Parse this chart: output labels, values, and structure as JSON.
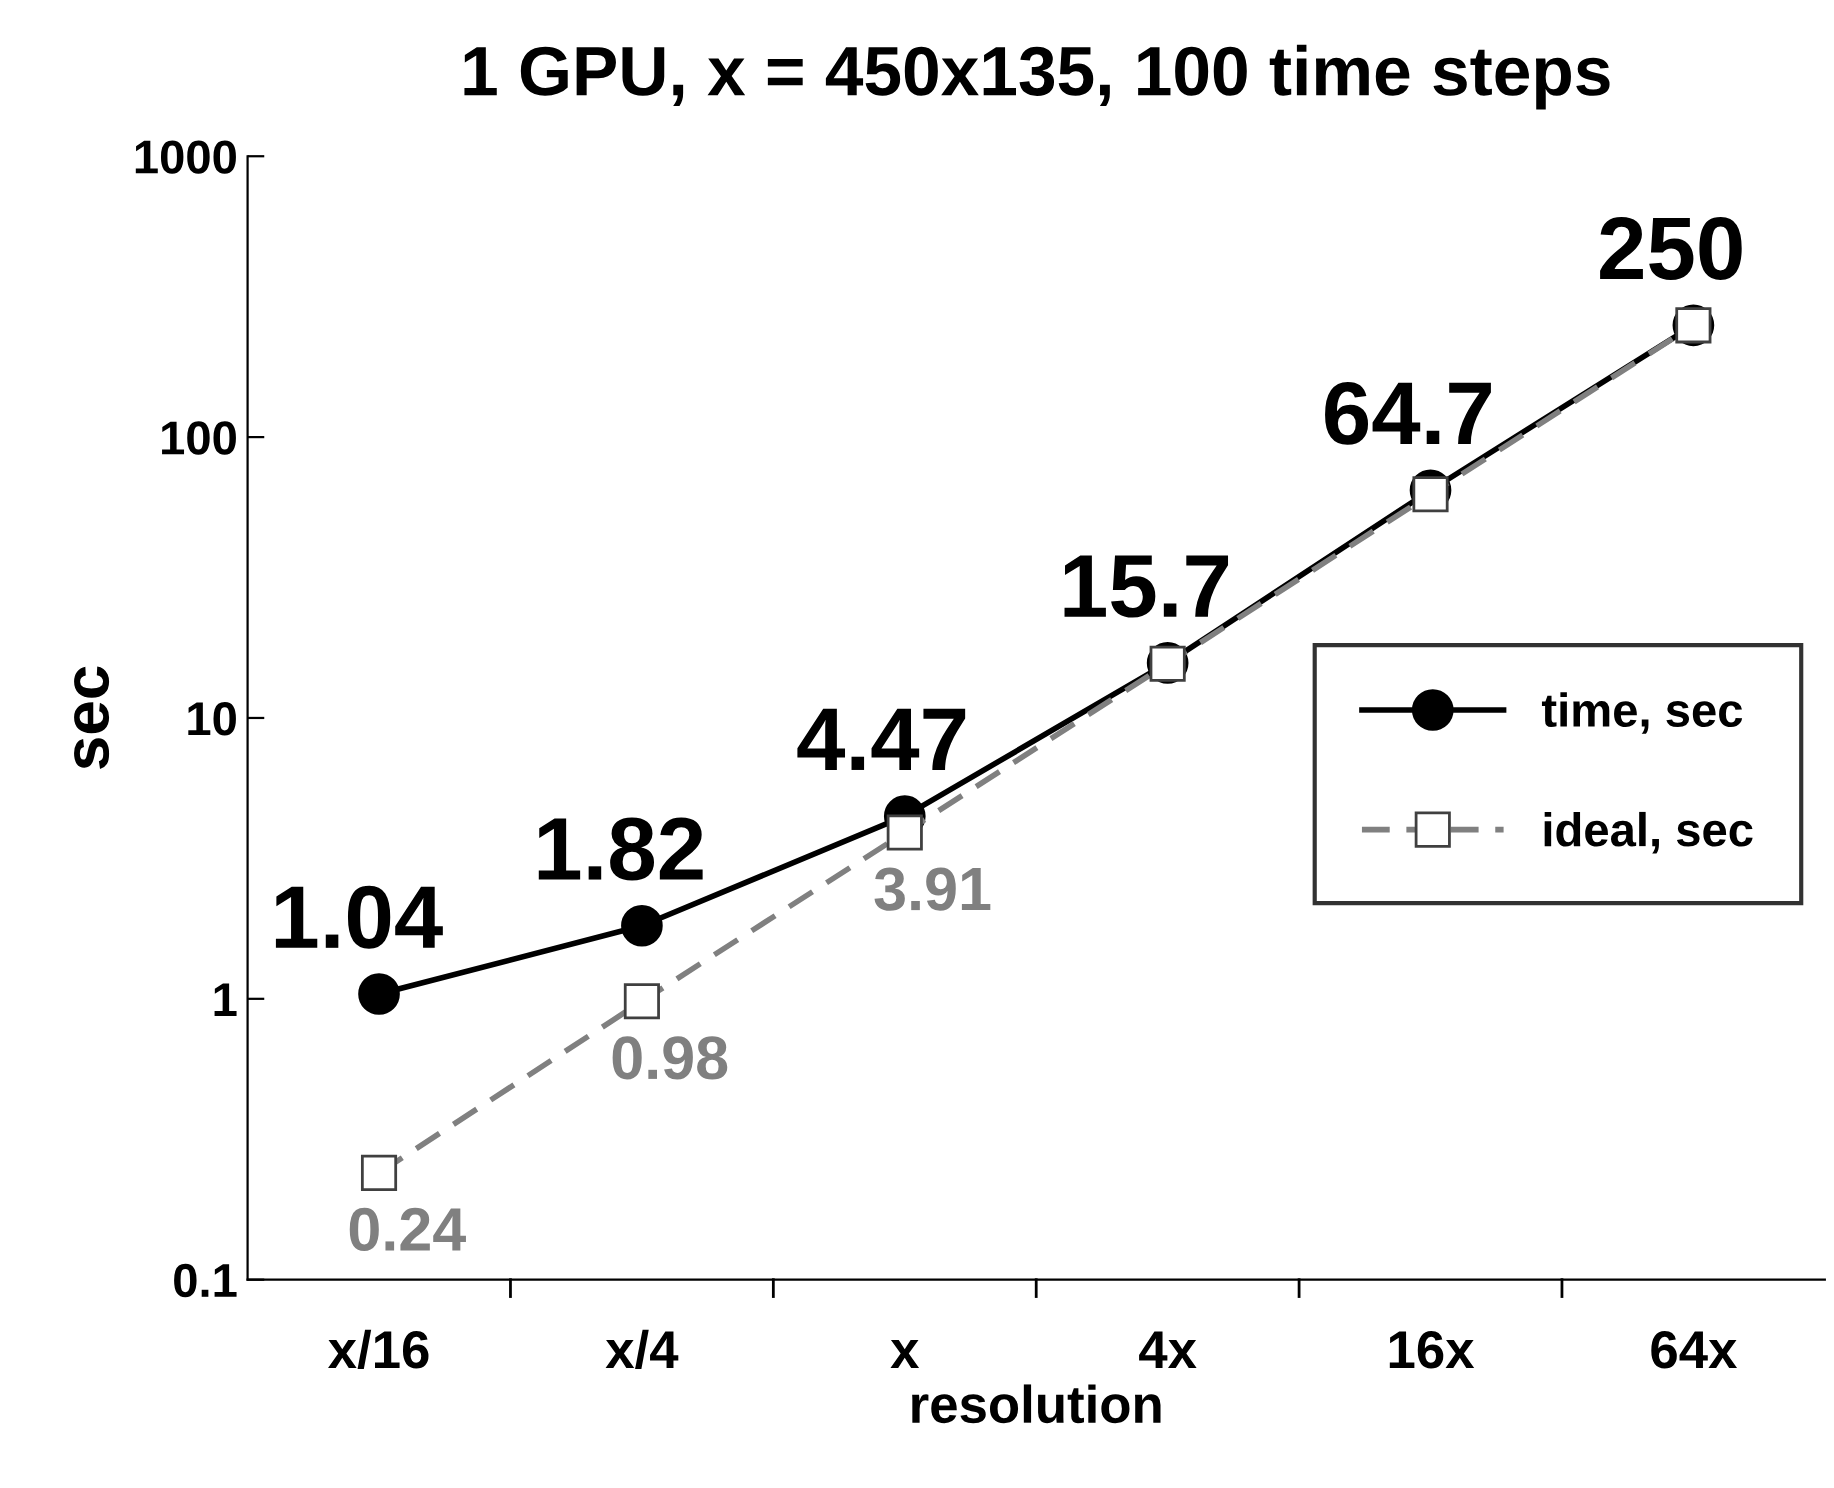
{
  "chart_data": {
    "type": "line",
    "title": "1 GPU, x = 450x135, 100 time steps",
    "xlabel": "resolution",
    "ylabel": "sec",
    "categories": [
      "x/16",
      "x/4",
      "x",
      "4x",
      "16x",
      "64x"
    ],
    "series": [
      {
        "name": "time, sec",
        "color": "#000000",
        "marker": "circle",
        "line_style": "solid",
        "values": [
          1.04,
          1.82,
          4.47,
          15.7,
          64.7,
          250
        ],
        "value_labels": [
          "1.04",
          "1.82",
          "4.47",
          "15.7",
          "64.7",
          "250"
        ]
      },
      {
        "name": "ideal, sec",
        "color": "#808080",
        "marker": "square",
        "line_style": "dashed",
        "values": [
          0.24,
          0.98,
          3.91,
          15.6,
          62.6,
          250
        ],
        "value_labels": [
          "0.24",
          "0.98",
          "3.91",
          null,
          null,
          null
        ]
      }
    ],
    "log": "y",
    "ylim": [
      0.1,
      1000
    ],
    "yticks": [
      0.1,
      1,
      10,
      100,
      1000
    ],
    "grid": false,
    "legend": "right"
  }
}
